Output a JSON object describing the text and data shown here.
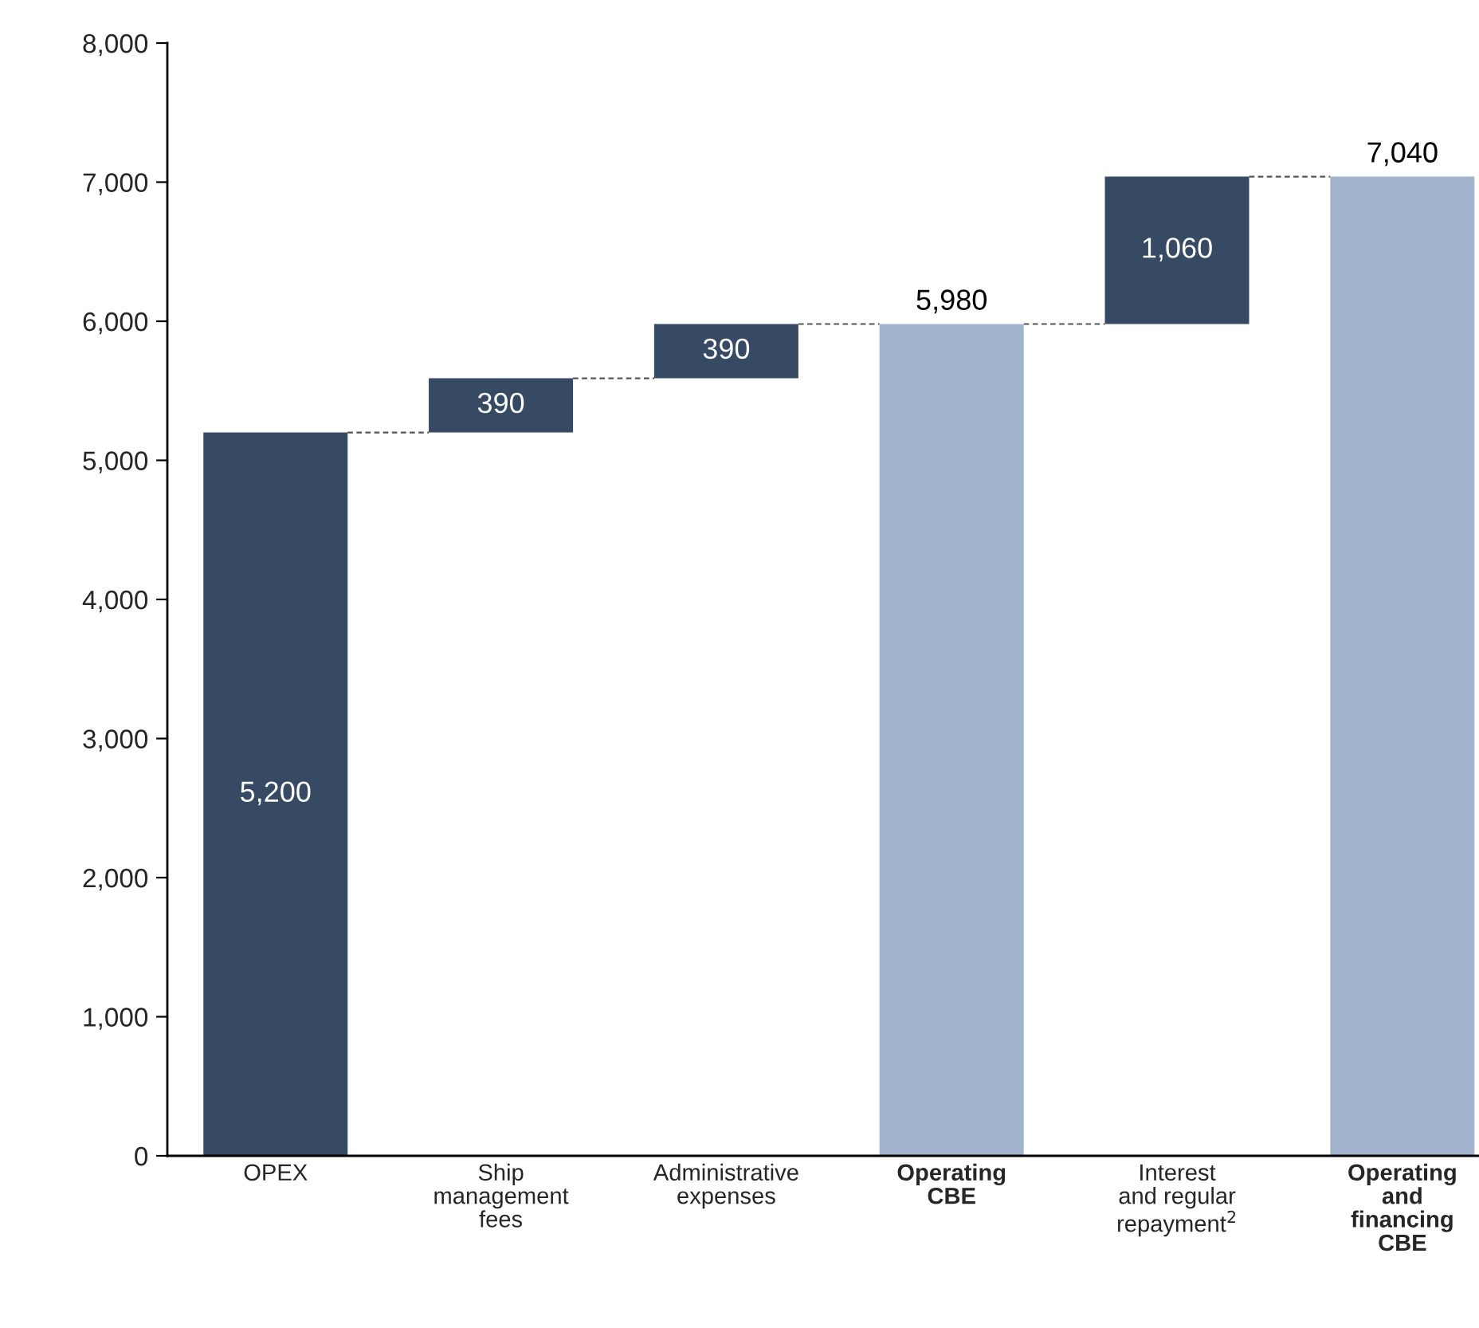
{
  "chart_data": {
    "type": "bar",
    "categories": [
      "OPEX",
      "Ship\nmanagement\nfees",
      "Administrative\nexpenses",
      "Operating\nCBE",
      "Interest\nand regular\nrepayment$^{2}$",
      "Operating\nand\nfinancing\nCBE"
    ],
    "values": [
      5200,
      390,
      390,
      5980,
      1060,
      7040
    ],
    "base": [
      0,
      5200,
      5590,
      0,
      5980,
      0
    ],
    "colors": [
      "#364a63",
      "#364a63",
      "#364a63",
      "#a2b4cd",
      "#364a63",
      "#a2b4cd"
    ],
    "ylim": [
      0,
      8000
    ],
    "yticks": [
      {
        "value": 0,
        "label": "0"
      },
      {
        "value": 1000,
        "label": "1,000"
      },
      {
        "value": 2000,
        "label": "2,000"
      },
      {
        "value": 3000,
        "label": "3,000"
      },
      {
        "value": 4000,
        "label": "4,000"
      },
      {
        "value": 5000,
        "label": "5,000"
      },
      {
        "value": 6000,
        "label": "6,000"
      },
      {
        "value": 7000,
        "label": "7,000"
      },
      {
        "value": 8000,
        "label": "8,000"
      }
    ],
    "value_labels": [
      "5,200",
      "390",
      "390",
      "5,980",
      "1,060",
      "7,040"
    ],
    "grid": false,
    "legend": false
  }
}
